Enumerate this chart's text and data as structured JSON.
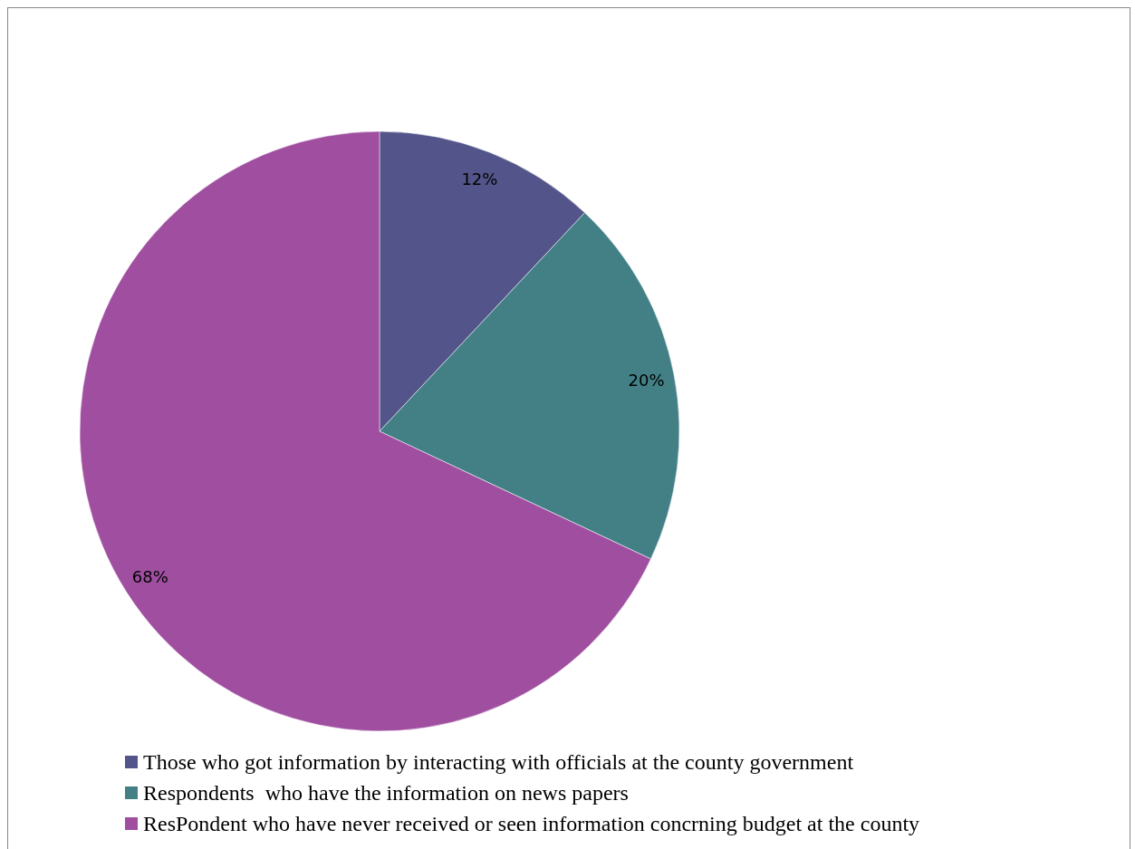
{
  "chart_data": {
    "type": "pie",
    "categories": [
      "Those who got information by interacting with officials at the county government",
      "Respondents  who have the information on news papers",
      "ResPondent who have never received or seen information concrning budget at the county"
    ],
    "values": [
      12,
      20,
      68
    ],
    "colors": [
      "#53548a",
      "#428086",
      "#a04fa0"
    ],
    "value_labels": [
      "12%",
      "20%",
      "68%"
    ],
    "legend": "bottom"
  }
}
